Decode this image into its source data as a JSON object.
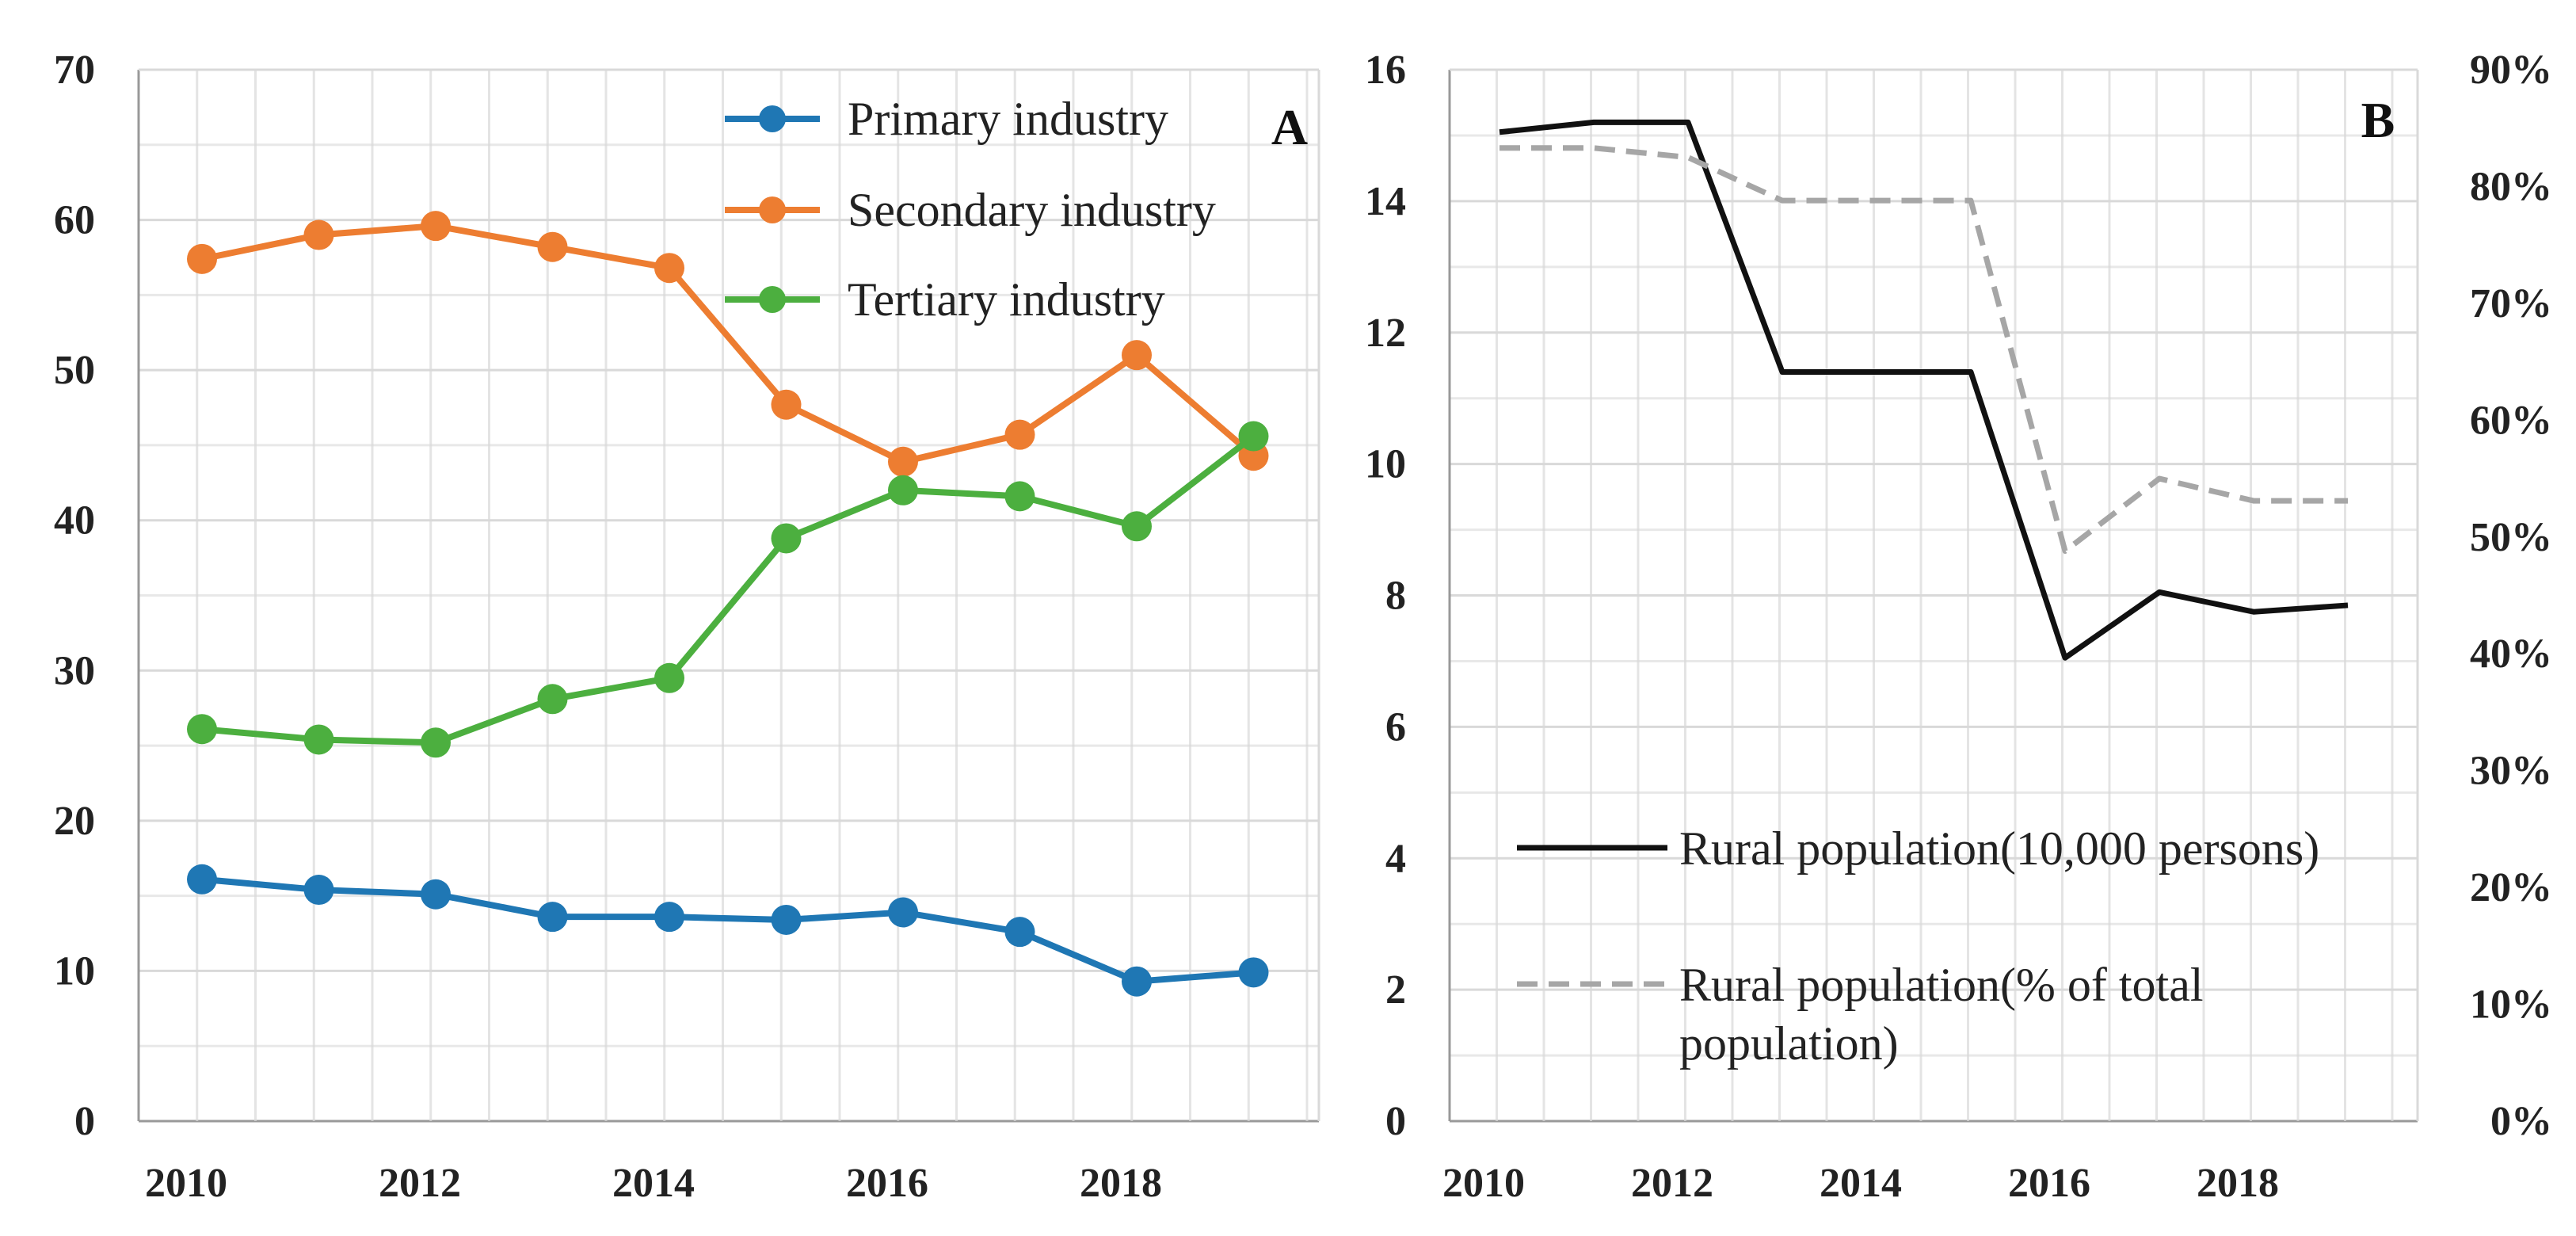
{
  "chart_data": [
    {
      "panel": "A",
      "type": "line",
      "categories": [
        "2010",
        "2011",
        "2012",
        "2013",
        "2014",
        "2015",
        "2016",
        "2017",
        "2018",
        "2019"
      ],
      "x_tick_labels": [
        "2010",
        "2012",
        "2014",
        "2016",
        "2018"
      ],
      "series": [
        {
          "name": "Primary industry",
          "color": "#1f77b4",
          "values": [
            16.1,
            15.4,
            15.1,
            13.6,
            13.6,
            13.4,
            13.9,
            12.6,
            9.3,
            9.9
          ]
        },
        {
          "name": "Secondary industry",
          "color": "#ed7d31",
          "values": [
            57.4,
            59.0,
            59.6,
            58.2,
            56.8,
            47.7,
            43.9,
            45.7,
            51.0,
            44.3
          ]
        },
        {
          "name": "Tertiary industry",
          "color": "#4caf3f",
          "values": [
            26.1,
            25.4,
            25.2,
            28.1,
            29.5,
            38.8,
            42.0,
            41.6,
            39.6,
            45.6
          ]
        }
      ],
      "ylim": [
        0,
        70
      ],
      "y_ticks": [
        0,
        10,
        20,
        30,
        40,
        50,
        60,
        70
      ],
      "y_tick_labels": [
        "0",
        "10",
        "20",
        "30",
        "40",
        "50",
        "60",
        "70"
      ],
      "grid": true,
      "legend": "top-right",
      "label": "A",
      "title": "",
      "xlabel": "",
      "ylabel": ""
    },
    {
      "panel": "B",
      "type": "line",
      "categories": [
        "2010",
        "2011",
        "2012",
        "2013",
        "2014",
        "2015",
        "2016",
        "2017",
        "2018",
        "2019"
      ],
      "x_tick_labels": [
        "2010",
        "2012",
        "2014",
        "2016",
        "2018"
      ],
      "series": [
        {
          "name": "Rural population(10,000 persons)",
          "axis": "left",
          "style": "solid",
          "color": "#111111",
          "values": [
            15.05,
            15.2,
            15.2,
            11.4,
            11.4,
            11.4,
            7.05,
            8.05,
            7.75,
            7.85
          ]
        },
        {
          "name": "Rural population(% of total population)",
          "axis": "right",
          "style": "dashed",
          "color": "#a6a6a6",
          "values": [
            83.3,
            83.3,
            82.5,
            78.8,
            78.8,
            78.8,
            48.8,
            55.0,
            53.1,
            53.1
          ]
        }
      ],
      "legend_lines": [
        [
          "Rural population(10,000 persons)"
        ],
        [
          "Rural population(% of total",
          "population)"
        ]
      ],
      "ylim": [
        0,
        16
      ],
      "y_ticks": [
        0,
        2,
        4,
        6,
        8,
        10,
        12,
        14,
        16
      ],
      "y_tick_labels": [
        "0",
        "2",
        "4",
        "6",
        "8",
        "10",
        "12",
        "14",
        "16"
      ],
      "y2lim": [
        0,
        90
      ],
      "y2_ticks": [
        0,
        10,
        20,
        30,
        40,
        50,
        60,
        70,
        80,
        90
      ],
      "y2_tick_labels": [
        "0%",
        "10%",
        "20%",
        "30%",
        "40%",
        "50%",
        "60%",
        "70%",
        "80%",
        "90%"
      ],
      "grid": true,
      "legend": "bottom-left",
      "label": "B",
      "title": "",
      "xlabel": "",
      "ylabel": ""
    }
  ]
}
